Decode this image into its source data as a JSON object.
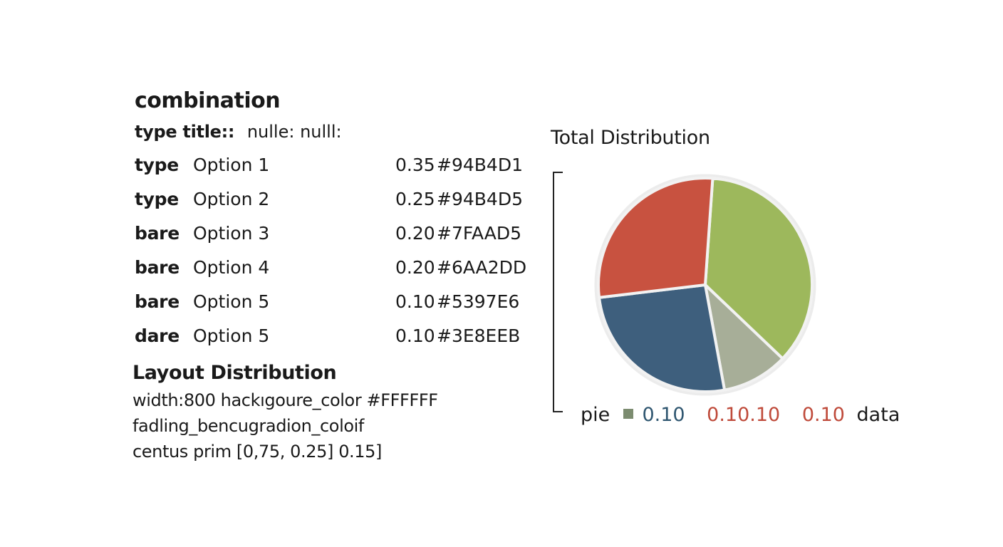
{
  "spec": {
    "heading": "combination",
    "type_title_key": "type title::",
    "type_title_value": "nulle: nulll:",
    "options": [
      {
        "type": "type",
        "label": "Option 1",
        "value": "0.35",
        "color": "#94B4D1"
      },
      {
        "type": "type",
        "label": "Option 2",
        "value": "0.25",
        "color": "#94B4D5"
      },
      {
        "type": "bare",
        "label": "Option 3",
        "value": "0.20",
        "color": "#7FAAD5"
      },
      {
        "type": "bare",
        "label": "Option 4",
        "value": "0.20",
        "color": "#6AA2DD"
      },
      {
        "type": "bare",
        "label": "Option 5",
        "value": "0.10",
        "color": "#5397E6"
      },
      {
        "type": "dare",
        "label": "Option 5",
        "value": "0.10",
        "color": "#3E8EEB"
      }
    ]
  },
  "layout": {
    "title": "Layout Distribution",
    "lines": [
      "width:800 hackıgoure_color #FFFFFF",
      "fadling_bencugradion_coloif",
      "centus prim [0,75, 0.25] 0.15]"
    ]
  },
  "chart_data": {
    "type": "pie",
    "title": "Total Distribution",
    "slices": [
      {
        "value": 0.36,
        "color": "#9DB85C"
      },
      {
        "value": 0.1,
        "color": "#A7AE98"
      },
      {
        "value": 0.26,
        "color": "#3E5F7D"
      },
      {
        "value": 0.28,
        "color": "#C85240"
      }
    ],
    "start_angle_deg": 4,
    "legend": {
      "prefix": "pie",
      "swatch_color": "#7C8C70",
      "entries": [
        {
          "text": "0.10",
          "color": "#2F5670"
        },
        {
          "text": "0.10.10",
          "color": "#BF4A3A"
        },
        {
          "text": "0.10",
          "color": "#BF4A3A"
        }
      ],
      "suffix": "data"
    }
  }
}
